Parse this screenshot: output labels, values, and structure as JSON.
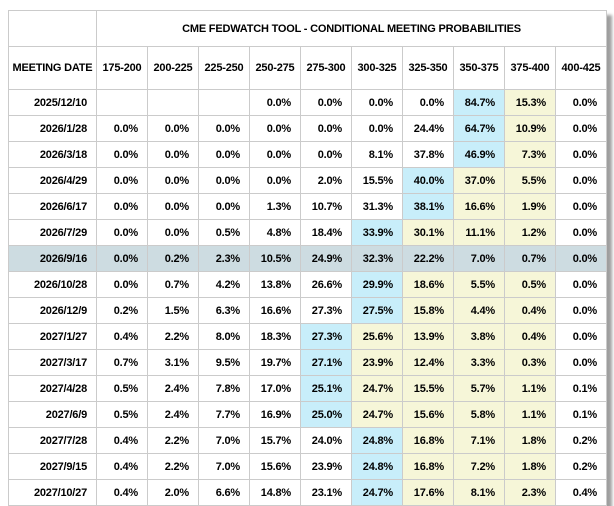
{
  "chart_data": {
    "type": "table",
    "title": "CME FEDWATCH TOOL - CONDITIONAL MEETING PROBABILITIES",
    "date_column_label": "MEETING DATE",
    "rate_columns": [
      "175-200",
      "200-225",
      "225-250",
      "250-275",
      "275-300",
      "300-325",
      "325-350",
      "350-375",
      "375-400",
      "400-425"
    ],
    "rows": [
      {
        "date": "2025/12/10",
        "selected": false,
        "values": [
          "",
          "",
          "",
          "0.0%",
          "0.0%",
          "0.0%",
          "0.0%",
          "84.7%",
          "15.3%",
          "0.0%"
        ],
        "bg": [
          "",
          "",
          "",
          "",
          "",
          "",
          "",
          "blue",
          "yellow",
          ""
        ]
      },
      {
        "date": "2026/1/28",
        "selected": false,
        "values": [
          "0.0%",
          "0.0%",
          "0.0%",
          "0.0%",
          "0.0%",
          "0.0%",
          "24.4%",
          "64.7%",
          "10.9%",
          "0.0%"
        ],
        "bg": [
          "",
          "",
          "",
          "",
          "",
          "",
          "",
          "blue",
          "yellow",
          ""
        ]
      },
      {
        "date": "2026/3/18",
        "selected": false,
        "values": [
          "0.0%",
          "0.0%",
          "0.0%",
          "0.0%",
          "0.0%",
          "8.1%",
          "37.8%",
          "46.9%",
          "7.3%",
          "0.0%"
        ],
        "bg": [
          "",
          "",
          "",
          "",
          "",
          "",
          "",
          "blue",
          "yellow",
          ""
        ]
      },
      {
        "date": "2026/4/29",
        "selected": false,
        "values": [
          "0.0%",
          "0.0%",
          "0.0%",
          "0.0%",
          "2.0%",
          "15.5%",
          "40.0%",
          "37.0%",
          "5.5%",
          "0.0%"
        ],
        "bg": [
          "",
          "",
          "",
          "",
          "",
          "",
          "blue",
          "yellow",
          "yellow",
          ""
        ]
      },
      {
        "date": "2026/6/17",
        "selected": false,
        "values": [
          "0.0%",
          "0.0%",
          "0.0%",
          "1.3%",
          "10.7%",
          "31.3%",
          "38.1%",
          "16.6%",
          "1.9%",
          "0.0%"
        ],
        "bg": [
          "",
          "",
          "",
          "",
          "",
          "",
          "blue",
          "yellow",
          "yellow",
          ""
        ]
      },
      {
        "date": "2026/7/29",
        "selected": false,
        "values": [
          "0.0%",
          "0.0%",
          "0.5%",
          "4.8%",
          "18.4%",
          "33.9%",
          "30.1%",
          "11.1%",
          "1.2%",
          "0.0%"
        ],
        "bg": [
          "",
          "",
          "",
          "",
          "",
          "blue",
          "yellow",
          "yellow",
          "yellow",
          ""
        ]
      },
      {
        "date": "2026/9/16",
        "selected": true,
        "values": [
          "0.0%",
          "0.2%",
          "2.3%",
          "10.5%",
          "24.9%",
          "32.3%",
          "22.2%",
          "7.0%",
          "0.7%",
          "0.0%"
        ],
        "bg": [
          "",
          "",
          "",
          "",
          "",
          "",
          "",
          "",
          "",
          ""
        ]
      },
      {
        "date": "2026/10/28",
        "selected": false,
        "values": [
          "0.0%",
          "0.7%",
          "4.2%",
          "13.8%",
          "26.6%",
          "29.9%",
          "18.6%",
          "5.5%",
          "0.5%",
          "0.0%"
        ],
        "bg": [
          "",
          "",
          "",
          "",
          "",
          "blue",
          "yellow",
          "yellow",
          "yellow",
          ""
        ]
      },
      {
        "date": "2026/12/9",
        "selected": false,
        "values": [
          "0.2%",
          "1.5%",
          "6.3%",
          "16.6%",
          "27.3%",
          "27.5%",
          "15.8%",
          "4.4%",
          "0.4%",
          "0.0%"
        ],
        "bg": [
          "",
          "",
          "",
          "",
          "",
          "blue",
          "yellow",
          "yellow",
          "yellow",
          ""
        ]
      },
      {
        "date": "2027/1/27",
        "selected": false,
        "values": [
          "0.4%",
          "2.2%",
          "8.0%",
          "18.3%",
          "27.3%",
          "25.6%",
          "13.9%",
          "3.8%",
          "0.4%",
          "0.0%"
        ],
        "bg": [
          "",
          "",
          "",
          "",
          "blue",
          "yellow",
          "yellow",
          "yellow",
          "yellow",
          ""
        ]
      },
      {
        "date": "2027/3/17",
        "selected": false,
        "values": [
          "0.7%",
          "3.1%",
          "9.5%",
          "19.7%",
          "27.1%",
          "23.9%",
          "12.4%",
          "3.3%",
          "0.3%",
          "0.0%"
        ],
        "bg": [
          "",
          "",
          "",
          "",
          "blue",
          "yellow",
          "yellow",
          "yellow",
          "yellow",
          ""
        ]
      },
      {
        "date": "2027/4/28",
        "selected": false,
        "values": [
          "0.5%",
          "2.4%",
          "7.8%",
          "17.0%",
          "25.1%",
          "24.7%",
          "15.5%",
          "5.7%",
          "1.1%",
          "0.1%"
        ],
        "bg": [
          "",
          "",
          "",
          "",
          "blue",
          "yellow",
          "yellow",
          "yellow",
          "yellow",
          ""
        ]
      },
      {
        "date": "2027/6/9",
        "selected": false,
        "values": [
          "0.5%",
          "2.4%",
          "7.7%",
          "16.9%",
          "25.0%",
          "24.7%",
          "15.6%",
          "5.8%",
          "1.1%",
          "0.1%"
        ],
        "bg": [
          "",
          "",
          "",
          "",
          "blue",
          "yellow",
          "yellow",
          "yellow",
          "yellow",
          ""
        ]
      },
      {
        "date": "2027/7/28",
        "selected": false,
        "values": [
          "0.4%",
          "2.2%",
          "7.0%",
          "15.7%",
          "24.0%",
          "24.8%",
          "16.8%",
          "7.1%",
          "1.8%",
          "0.2%"
        ],
        "bg": [
          "",
          "",
          "",
          "",
          "",
          "blue",
          "yellow",
          "yellow",
          "yellow",
          ""
        ]
      },
      {
        "date": "2027/9/15",
        "selected": false,
        "values": [
          "0.4%",
          "2.2%",
          "7.0%",
          "15.6%",
          "23.9%",
          "24.8%",
          "16.8%",
          "7.2%",
          "1.8%",
          "0.2%"
        ],
        "bg": [
          "",
          "",
          "",
          "",
          "",
          "blue",
          "yellow",
          "yellow",
          "yellow",
          ""
        ]
      },
      {
        "date": "2027/10/27",
        "selected": false,
        "values": [
          "0.4%",
          "2.0%",
          "6.6%",
          "14.8%",
          "23.1%",
          "24.7%",
          "17.6%",
          "8.1%",
          "2.3%",
          "0.4%"
        ],
        "bg": [
          "",
          "",
          "",
          "",
          "",
          "blue",
          "yellow",
          "yellow",
          "yellow",
          ""
        ]
      }
    ]
  },
  "colors": {
    "max_cell_blue": "#c8eefa",
    "secondary_cell_yellow": "#f6f6d8",
    "selected_row_gray": "#cddce1"
  }
}
